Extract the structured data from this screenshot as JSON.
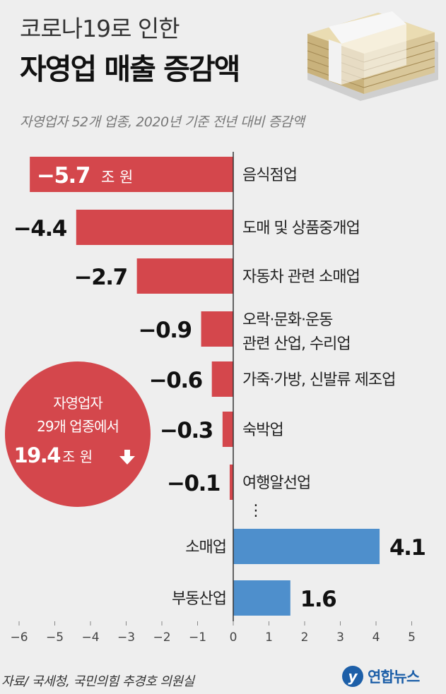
{
  "header": {
    "title_line1": "코로나19로 인한",
    "title_line2": "자영업 매출 증감액",
    "subtitle": "자영업자 52개 업종, 2020년 기준 전년 대비 증감액"
  },
  "callout": {
    "line1": "자영업자",
    "line2": "29개 업종에서",
    "value": "19.4",
    "unit": "조 원"
  },
  "chart_data": {
    "type": "bar",
    "orientation": "horizontal",
    "unit": "조 원",
    "categories": [
      [
        "음식점업"
      ],
      [
        "도매 및 상품중개업"
      ],
      [
        "자동차 관련 소매업"
      ],
      [
        "오락·문화·운동",
        "관련 산업, 수리업"
      ],
      [
        "가죽·가방, 신발류 제조업"
      ],
      [
        "숙박업"
      ],
      [
        "여행알선업"
      ],
      [
        "소매업"
      ],
      [
        "부동산업"
      ]
    ],
    "values": [
      -5.7,
      -4.4,
      -2.7,
      -0.9,
      -0.6,
      -0.3,
      -0.1,
      4.1,
      1.6
    ],
    "value_labels": [
      "−5.7",
      "−4.4",
      "−2.7",
      "−0.9",
      "−0.6",
      "−0.3",
      "−0.1",
      "4.1",
      "1.6"
    ],
    "xlim": [
      -6,
      5
    ],
    "xticks": [
      -6,
      -5,
      -4,
      -3,
      -2,
      -1,
      0,
      1,
      2,
      3,
      4,
      5
    ],
    "xtick_labels": [
      "−6",
      "−5",
      "−4",
      "−3",
      "−2",
      "−1",
      "0",
      "1",
      "2",
      "3",
      "4",
      "5"
    ],
    "ellipsis": "⋮",
    "colors": {
      "negative": "#d4474c",
      "positive": "#4e8fcc",
      "axis": "#333333"
    }
  },
  "footer": {
    "source": "자료/ 국세청, 국민의힘 추경호 의원실",
    "logo_mark": "y",
    "logo_text": "연합뉴스"
  }
}
